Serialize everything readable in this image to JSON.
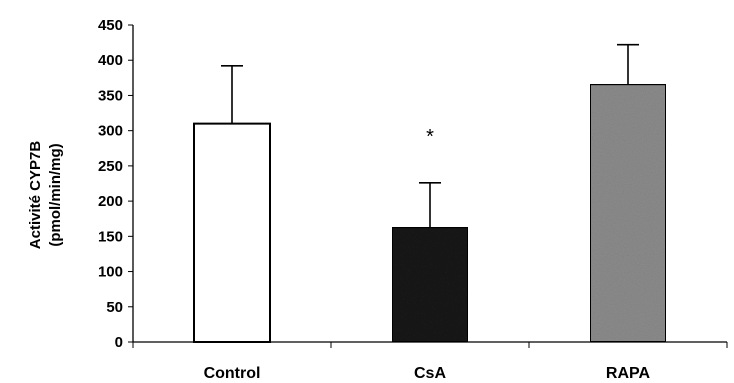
{
  "chart_data": {
    "type": "bar",
    "categories": [
      "Control",
      "CsA",
      "RAPA"
    ],
    "values": [
      310,
      163,
      366
    ],
    "error_upper": [
      392,
      226,
      422
    ],
    "fills": [
      "#ffffff",
      "#1a1a1a",
      "#8c8c8c"
    ],
    "ylabel_line1": "Activité CYP7B",
    "ylabel_line2": "(pmol/min/mg)",
    "ylim": [
      0,
      450
    ],
    "yticks": [
      "0",
      "50",
      "100",
      "150",
      "200",
      "250",
      "300",
      "350",
      "400",
      "450"
    ],
    "annotations": [
      {
        "category": "CsA",
        "text": "*"
      }
    ],
    "grid": false,
    "legend": "none"
  }
}
